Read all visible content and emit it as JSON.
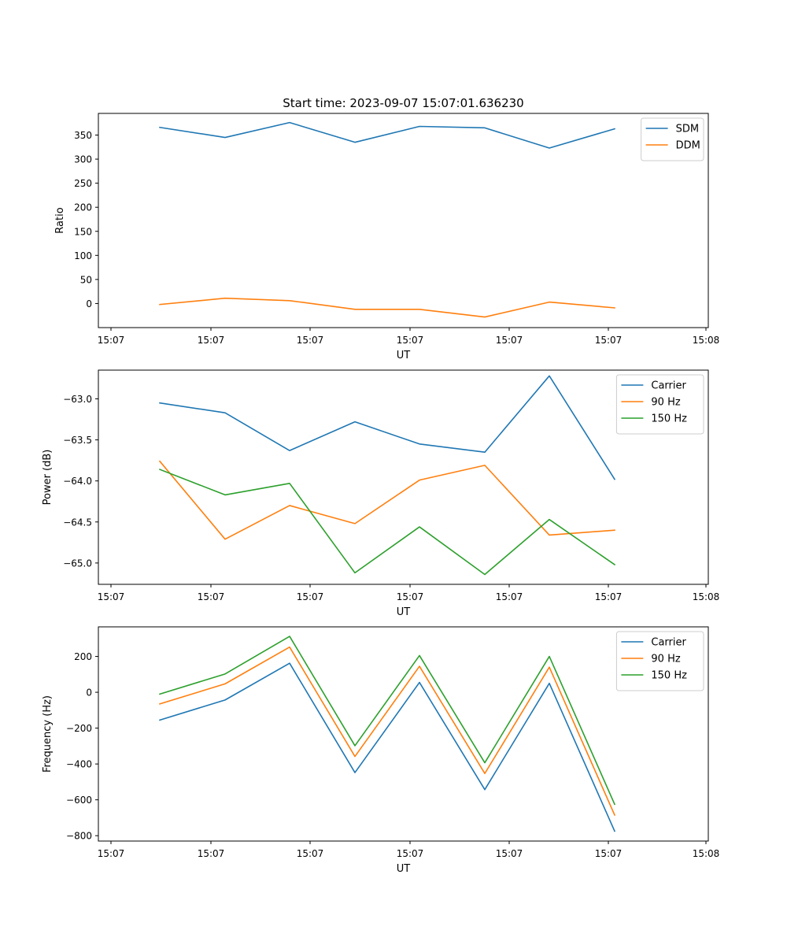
{
  "chart_data": [
    {
      "type": "line",
      "title": "Start time: 2023-09-07 15:07:01.636230",
      "xlabel": "UT",
      "ylabel": "Ratio",
      "xtick_labels": [
        "15:07",
        "15:07",
        "15:07",
        "15:07",
        "15:07",
        "15:07",
        "15:08"
      ],
      "ylim": [
        -50,
        395
      ],
      "yticks": [
        0,
        50,
        100,
        150,
        200,
        250,
        300,
        350
      ],
      "legend_position": "top-right",
      "series": [
        {
          "name": "SDM",
          "color": "#1f77b4",
          "values": [
            366,
            345,
            376,
            335,
            368,
            365,
            323,
            363
          ]
        },
        {
          "name": "DDM",
          "color": "#ff7f0e",
          "values": [
            -2,
            11,
            6,
            -12,
            -12,
            -28,
            3,
            -9
          ]
        }
      ]
    },
    {
      "type": "line",
      "title": "",
      "xlabel": "UT",
      "ylabel": "Power (dB)",
      "xtick_labels": [
        "15:07",
        "15:07",
        "15:07",
        "15:07",
        "15:07",
        "15:07",
        "15:08"
      ],
      "ylim": [
        -65.26,
        -62.65
      ],
      "yticks": [
        -63.0,
        -63.5,
        -64.0,
        -64.5,
        -65.0
      ],
      "ytick_labels": [
        "−63.0",
        "−63.5",
        "−64.0",
        "−64.5",
        "−65.0"
      ],
      "legend_position": "top-right",
      "series": [
        {
          "name": "Carrier",
          "color": "#1f77b4",
          "values": [
            -63.05,
            -63.17,
            -63.63,
            -63.28,
            -63.55,
            -63.65,
            -62.72,
            -63.98
          ]
        },
        {
          "name": "90 Hz",
          "color": "#ff7f0e",
          "values": [
            -63.76,
            -64.71,
            -64.3,
            -64.52,
            -63.99,
            -63.81,
            -64.66,
            -64.6
          ]
        },
        {
          "name": "150 Hz",
          "color": "#2ca02c",
          "values": [
            -63.86,
            -64.17,
            -64.03,
            -65.12,
            -64.56,
            -65.14,
            -64.47,
            -65.02
          ]
        }
      ]
    },
    {
      "type": "line",
      "title": "",
      "xlabel": "UT",
      "ylabel": "Frequency (Hz)",
      "xtick_labels": [
        "15:07",
        "15:07",
        "15:07",
        "15:07",
        "15:07",
        "15:07",
        "15:08"
      ],
      "ylim": [
        -830,
        365
      ],
      "yticks": [
        200,
        0,
        -200,
        -400,
        -600,
        -800
      ],
      "ytick_labels": [
        "200",
        "0",
        "−200",
        "−400",
        "−600",
        "−800"
      ],
      "legend_position": "top-right",
      "series": [
        {
          "name": "Carrier",
          "color": "#1f77b4",
          "values": [
            -155,
            -43,
            162,
            -448,
            55,
            -543,
            50,
            -775
          ]
        },
        {
          "name": "90 Hz",
          "color": "#ff7f0e",
          "values": [
            -65,
            47,
            252,
            -358,
            145,
            -453,
            140,
            -685
          ]
        },
        {
          "name": "150 Hz",
          "color": "#2ca02c",
          "values": [
            -10,
            102,
            312,
            -298,
            205,
            -393,
            200,
            -625
          ]
        }
      ]
    }
  ]
}
